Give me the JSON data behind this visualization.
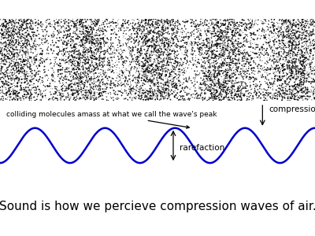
{
  "caption": "Sound is how we percieve compression waves of air.",
  "caption_fontsize": 11,
  "wave_color": "#0000cc",
  "wave_amplitude": 0.35,
  "wave_cycles": 4.5,
  "wave_linewidth": 1.8,
  "annotation1_text": "colliding molecules amass at what we call the wave's peak",
  "annotation1_fontsize": 6.5,
  "annotation2_text": "rarefaction",
  "annotation2_fontsize": 7.5,
  "annotation3_text": "compression",
  "annotation3_fontsize": 7.5,
  "noise_density_base": 0.35,
  "noise_density_mod": 0.65,
  "n_dots": 12000,
  "background_color": "#ffffff"
}
